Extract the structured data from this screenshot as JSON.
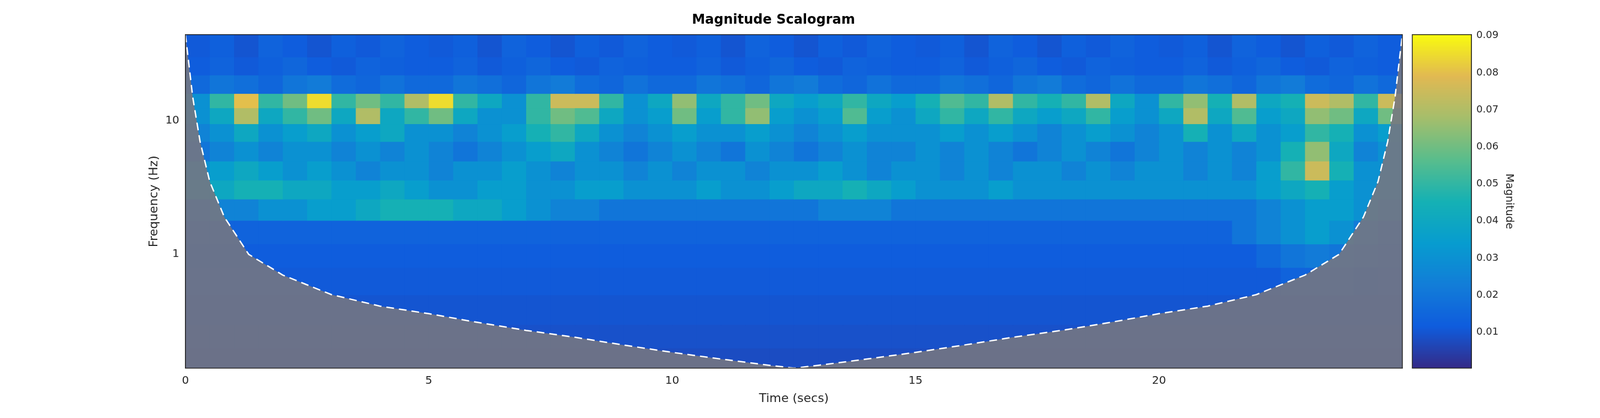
{
  "chart_data": {
    "type": "heatmap",
    "title": "Magnitude Scalogram",
    "x_label": "Time (secs)",
    "y_label": "Frequency (Hz)",
    "log": "y",
    "grid": false,
    "xlim": [
      0,
      25
    ],
    "xticks": [
      0,
      5,
      10,
      15,
      20
    ],
    "ylim": [
      0.141,
      43.9
    ],
    "yticks": [
      1,
      10
    ],
    "time_edges": [
      0,
      0.5,
      1,
      1.5,
      2,
      2.5,
      3,
      3.5,
      4,
      4.5,
      5,
      5.5,
      6,
      6.5,
      7,
      7.5,
      8,
      8.5,
      9,
      9.5,
      10,
      10.5,
      11,
      11.5,
      12,
      12.5,
      13,
      13.5,
      14,
      14.5,
      15,
      15.5,
      16,
      16.5,
      17,
      17.5,
      18,
      18.5,
      19,
      19.5,
      20,
      20.5,
      21,
      21.5,
      22,
      22.5,
      23,
      23.5,
      24,
      24.5,
      25
    ],
    "freq_edges": [
      0.141,
      0.2,
      0.3,
      0.5,
      0.8,
      1.2,
      1.8,
      2.6,
      3.6,
      5,
      7,
      9.5,
      12.5,
      16,
      22,
      30,
      43.9
    ],
    "cells": [
      [
        0.008,
        0.008,
        0.008,
        0.008,
        0.008,
        0.008,
        0.008,
        0.008,
        0.008,
        0.008,
        0.008,
        0.008,
        0.008,
        0.008,
        0.008,
        0.008,
        0.008,
        0.008,
        0.008,
        0.008,
        0.008,
        0.008,
        0.008,
        0.008,
        0.008,
        0.008,
        0.008,
        0.008,
        0.008,
        0.008,
        0.008,
        0.008,
        0.008,
        0.008,
        0.008,
        0.008,
        0.008,
        0.008,
        0.008,
        0.008,
        0.008,
        0.008,
        0.008,
        0.008,
        0.008,
        0.008,
        0.008,
        0.008,
        0.008,
        0.008
      ],
      [
        0.009,
        0.009,
        0.009,
        0.009,
        0.009,
        0.009,
        0.009,
        0.009,
        0.009,
        0.009,
        0.009,
        0.009,
        0.009,
        0.009,
        0.009,
        0.009,
        0.009,
        0.009,
        0.009,
        0.009,
        0.009,
        0.009,
        0.009,
        0.009,
        0.009,
        0.009,
        0.009,
        0.009,
        0.009,
        0.009,
        0.009,
        0.009,
        0.009,
        0.009,
        0.009,
        0.009,
        0.009,
        0.009,
        0.009,
        0.009,
        0.009,
        0.009,
        0.009,
        0.009,
        0.009,
        0.009,
        0.009,
        0.009,
        0.009,
        0.009
      ],
      [
        0.01,
        0.01,
        0.01,
        0.01,
        0.01,
        0.01,
        0.01,
        0.01,
        0.01,
        0.01,
        0.01,
        0.01,
        0.01,
        0.01,
        0.01,
        0.01,
        0.01,
        0.01,
        0.01,
        0.01,
        0.01,
        0.01,
        0.01,
        0.01,
        0.01,
        0.01,
        0.01,
        0.01,
        0.01,
        0.01,
        0.01,
        0.01,
        0.01,
        0.01,
        0.01,
        0.01,
        0.01,
        0.01,
        0.01,
        0.01,
        0.01,
        0.01,
        0.01,
        0.01,
        0.01,
        0.01,
        0.01,
        0.01,
        0.01,
        0.01
      ],
      [
        0.011,
        0.011,
        0.011,
        0.011,
        0.011,
        0.011,
        0.011,
        0.011,
        0.011,
        0.011,
        0.011,
        0.011,
        0.011,
        0.011,
        0.011,
        0.011,
        0.011,
        0.011,
        0.011,
        0.011,
        0.011,
        0.011,
        0.011,
        0.011,
        0.011,
        0.011,
        0.011,
        0.011,
        0.011,
        0.011,
        0.011,
        0.011,
        0.011,
        0.011,
        0.011,
        0.011,
        0.011,
        0.011,
        0.011,
        0.011,
        0.011,
        0.011,
        0.011,
        0.011,
        0.011,
        0.014,
        0.014,
        0.014,
        0.012,
        0.011
      ],
      [
        0.012,
        0.012,
        0.012,
        0.012,
        0.012,
        0.012,
        0.012,
        0.012,
        0.012,
        0.012,
        0.012,
        0.012,
        0.012,
        0.012,
        0.012,
        0.012,
        0.012,
        0.012,
        0.012,
        0.012,
        0.012,
        0.012,
        0.012,
        0.012,
        0.012,
        0.012,
        0.012,
        0.012,
        0.012,
        0.012,
        0.012,
        0.012,
        0.012,
        0.012,
        0.012,
        0.012,
        0.012,
        0.012,
        0.012,
        0.012,
        0.012,
        0.012,
        0.012,
        0.012,
        0.016,
        0.02,
        0.022,
        0.02,
        0.016,
        0.014
      ],
      [
        0.014,
        0.014,
        0.014,
        0.014,
        0.014,
        0.014,
        0.014,
        0.014,
        0.014,
        0.014,
        0.014,
        0.014,
        0.014,
        0.014,
        0.014,
        0.014,
        0.014,
        0.014,
        0.014,
        0.014,
        0.014,
        0.014,
        0.014,
        0.014,
        0.014,
        0.014,
        0.014,
        0.014,
        0.014,
        0.014,
        0.014,
        0.014,
        0.014,
        0.014,
        0.014,
        0.014,
        0.014,
        0.014,
        0.014,
        0.014,
        0.014,
        0.014,
        0.014,
        0.02,
        0.025,
        0.03,
        0.035,
        0.03,
        0.022,
        0.018
      ],
      [
        0.02,
        0.025,
        0.025,
        0.03,
        0.03,
        0.035,
        0.035,
        0.04,
        0.045,
        0.045,
        0.045,
        0.04,
        0.04,
        0.035,
        0.03,
        0.025,
        0.025,
        0.02,
        0.02,
        0.02,
        0.02,
        0.02,
        0.02,
        0.02,
        0.02,
        0.02,
        0.025,
        0.025,
        0.025,
        0.02,
        0.02,
        0.02,
        0.02,
        0.02,
        0.02,
        0.02,
        0.02,
        0.02,
        0.02,
        0.02,
        0.02,
        0.02,
        0.02,
        0.02,
        0.025,
        0.03,
        0.035,
        0.035,
        0.03,
        0.025
      ],
      [
        0.035,
        0.04,
        0.045,
        0.045,
        0.04,
        0.04,
        0.035,
        0.035,
        0.04,
        0.035,
        0.03,
        0.03,
        0.035,
        0.035,
        0.03,
        0.03,
        0.035,
        0.035,
        0.03,
        0.03,
        0.03,
        0.035,
        0.03,
        0.03,
        0.035,
        0.04,
        0.04,
        0.045,
        0.04,
        0.035,
        0.03,
        0.03,
        0.03,
        0.035,
        0.03,
        0.03,
        0.03,
        0.03,
        0.03,
        0.03,
        0.03,
        0.03,
        0.03,
        0.03,
        0.035,
        0.04,
        0.045,
        0.035,
        0.03,
        0.03
      ],
      [
        0.03,
        0.035,
        0.04,
        0.035,
        0.03,
        0.035,
        0.03,
        0.025,
        0.03,
        0.03,
        0.025,
        0.03,
        0.03,
        0.035,
        0.03,
        0.025,
        0.03,
        0.03,
        0.025,
        0.03,
        0.025,
        0.03,
        0.03,
        0.025,
        0.03,
        0.03,
        0.035,
        0.03,
        0.025,
        0.03,
        0.03,
        0.025,
        0.03,
        0.025,
        0.03,
        0.03,
        0.025,
        0.03,
        0.025,
        0.03,
        0.03,
        0.025,
        0.03,
        0.025,
        0.035,
        0.05,
        0.075,
        0.045,
        0.03,
        0.03
      ],
      [
        0.02,
        0.025,
        0.03,
        0.025,
        0.03,
        0.03,
        0.025,
        0.03,
        0.025,
        0.03,
        0.025,
        0.02,
        0.025,
        0.03,
        0.035,
        0.04,
        0.03,
        0.025,
        0.02,
        0.025,
        0.03,
        0.025,
        0.02,
        0.03,
        0.025,
        0.02,
        0.025,
        0.03,
        0.025,
        0.025,
        0.03,
        0.025,
        0.03,
        0.025,
        0.02,
        0.025,
        0.03,
        0.025,
        0.02,
        0.025,
        0.03,
        0.025,
        0.03,
        0.025,
        0.03,
        0.045,
        0.065,
        0.04,
        0.025,
        0.03
      ],
      [
        0.025,
        0.03,
        0.04,
        0.03,
        0.035,
        0.04,
        0.03,
        0.035,
        0.04,
        0.03,
        0.03,
        0.025,
        0.03,
        0.035,
        0.045,
        0.05,
        0.04,
        0.03,
        0.025,
        0.03,
        0.035,
        0.03,
        0.03,
        0.035,
        0.03,
        0.025,
        0.03,
        0.035,
        0.03,
        0.03,
        0.03,
        0.035,
        0.03,
        0.035,
        0.03,
        0.025,
        0.03,
        0.035,
        0.03,
        0.025,
        0.03,
        0.045,
        0.03,
        0.04,
        0.03,
        0.035,
        0.05,
        0.045,
        0.03,
        0.035
      ],
      [
        0.03,
        0.04,
        0.07,
        0.04,
        0.05,
        0.06,
        0.04,
        0.07,
        0.04,
        0.05,
        0.06,
        0.04,
        0.03,
        0.03,
        0.05,
        0.06,
        0.055,
        0.04,
        0.03,
        0.035,
        0.06,
        0.035,
        0.05,
        0.065,
        0.035,
        0.03,
        0.035,
        0.055,
        0.035,
        0.03,
        0.04,
        0.05,
        0.04,
        0.05,
        0.04,
        0.035,
        0.04,
        0.05,
        0.035,
        0.03,
        0.04,
        0.07,
        0.04,
        0.055,
        0.035,
        0.04,
        0.065,
        0.06,
        0.04,
        0.06
      ],
      [
        0.03,
        0.05,
        0.08,
        0.05,
        0.06,
        0.085,
        0.05,
        0.06,
        0.05,
        0.07,
        0.085,
        0.05,
        0.04,
        0.03,
        0.05,
        0.075,
        0.075,
        0.05,
        0.03,
        0.04,
        0.065,
        0.04,
        0.05,
        0.06,
        0.04,
        0.035,
        0.04,
        0.05,
        0.04,
        0.035,
        0.045,
        0.055,
        0.05,
        0.07,
        0.05,
        0.045,
        0.05,
        0.07,
        0.04,
        0.03,
        0.05,
        0.065,
        0.045,
        0.07,
        0.04,
        0.045,
        0.075,
        0.07,
        0.05,
        0.075
      ],
      [
        0.016,
        0.02,
        0.018,
        0.015,
        0.02,
        0.022,
        0.017,
        0.015,
        0.019,
        0.016,
        0.016,
        0.02,
        0.018,
        0.015,
        0.02,
        0.022,
        0.017,
        0.015,
        0.019,
        0.016,
        0.016,
        0.02,
        0.018,
        0.015,
        0.02,
        0.022,
        0.017,
        0.015,
        0.019,
        0.016,
        0.016,
        0.02,
        0.018,
        0.015,
        0.02,
        0.022,
        0.017,
        0.015,
        0.019,
        0.016,
        0.016,
        0.02,
        0.018,
        0.015,
        0.02,
        0.022,
        0.017,
        0.015,
        0.019,
        0.016
      ],
      [
        0.012,
        0.014,
        0.011,
        0.013,
        0.015,
        0.012,
        0.011,
        0.014,
        0.013,
        0.012,
        0.012,
        0.014,
        0.011,
        0.013,
        0.015,
        0.012,
        0.011,
        0.014,
        0.013,
        0.012,
        0.012,
        0.014,
        0.011,
        0.013,
        0.015,
        0.012,
        0.011,
        0.014,
        0.013,
        0.012,
        0.012,
        0.014,
        0.011,
        0.013,
        0.015,
        0.012,
        0.011,
        0.014,
        0.013,
        0.012,
        0.012,
        0.014,
        0.011,
        0.013,
        0.015,
        0.012,
        0.011,
        0.014,
        0.013,
        0.012
      ],
      [
        0.011,
        0.013,
        0.01,
        0.014,
        0.012,
        0.01,
        0.013,
        0.011,
        0.014,
        0.012,
        0.011,
        0.013,
        0.01,
        0.014,
        0.012,
        0.01,
        0.013,
        0.011,
        0.014,
        0.012,
        0.011,
        0.013,
        0.01,
        0.014,
        0.012,
        0.01,
        0.013,
        0.011,
        0.014,
        0.012,
        0.011,
        0.013,
        0.01,
        0.014,
        0.012,
        0.01,
        0.013,
        0.011,
        0.014,
        0.012,
        0.011,
        0.013,
        0.01,
        0.014,
        0.012,
        0.01,
        0.013,
        0.011,
        0.014,
        0.012
      ]
    ],
    "colorbar": {
      "label": "Magnitude",
      "lim": [
        0.0003,
        0.0903
      ],
      "ticks": [
        0.01,
        0.02,
        0.03,
        0.04,
        0.05,
        0.06,
        0.07,
        0.08,
        0.09
      ]
    },
    "cone_of_influence": {
      "x": [
        0,
        0.15,
        0.3,
        0.5,
        0.8,
        1.3,
        2,
        3,
        4,
        5,
        6,
        7,
        8,
        9,
        10,
        11,
        12,
        12.5,
        13,
        14,
        15,
        16,
        17,
        18,
        19,
        20,
        21,
        22,
        23,
        23.7,
        24.2,
        24.5,
        24.7,
        24.85,
        25
      ],
      "y": [
        43.9,
        15,
        7,
        3.5,
        1.9,
        1.0,
        0.7,
        0.5,
        0.41,
        0.36,
        0.31,
        0.27,
        0.24,
        0.21,
        0.185,
        0.165,
        0.148,
        0.141,
        0.148,
        0.165,
        0.185,
        0.21,
        0.24,
        0.27,
        0.31,
        0.36,
        0.41,
        0.5,
        0.7,
        1.0,
        1.9,
        3.5,
        7,
        15,
        43.9
      ],
      "color": "#ffffff",
      "line_style": "dashed"
    }
  }
}
